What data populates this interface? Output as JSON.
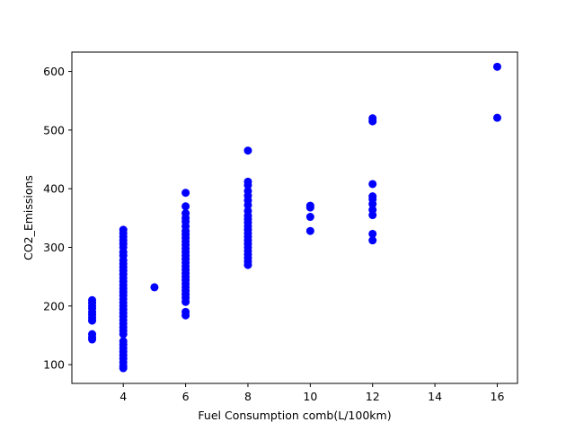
{
  "chart_data": {
    "type": "scatter",
    "title": "",
    "xlabel": "Fuel Consumption comb(L/100km)",
    "ylabel": "CO2_Emissions",
    "xlim": [
      2.35,
      16.65
    ],
    "ylim": [
      68,
      633
    ],
    "xticks": [
      4,
      6,
      8,
      10,
      12,
      14,
      16
    ],
    "yticks": [
      100,
      200,
      300,
      400,
      500,
      600
    ],
    "grid": false,
    "legend": "none",
    "marker_color": "#0000ff",
    "series": [
      {
        "color": "#0000ff",
        "points": [
          [
            3,
            143
          ],
          [
            3,
            147
          ],
          [
            3,
            152
          ],
          [
            3,
            175
          ],
          [
            3,
            180
          ],
          [
            3,
            185
          ],
          [
            3,
            190
          ],
          [
            3,
            196
          ],
          [
            3,
            200
          ],
          [
            3,
            205
          ],
          [
            3,
            210
          ],
          [
            4,
            94
          ],
          [
            4,
            98
          ],
          [
            4,
            104
          ],
          [
            4,
            110
          ],
          [
            4,
            116
          ],
          [
            4,
            122
          ],
          [
            4,
            128
          ],
          [
            4,
            134
          ],
          [
            4,
            140
          ],
          [
            4,
            152
          ],
          [
            4,
            158
          ],
          [
            4,
            164
          ],
          [
            4,
            170
          ],
          [
            4,
            176
          ],
          [
            4,
            182
          ],
          [
            4,
            188
          ],
          [
            4,
            194
          ],
          [
            4,
            200
          ],
          [
            4,
            206
          ],
          [
            4,
            212
          ],
          [
            4,
            218
          ],
          [
            4,
            224
          ],
          [
            4,
            230
          ],
          [
            4,
            236
          ],
          [
            4,
            242
          ],
          [
            4,
            248
          ],
          [
            4,
            254
          ],
          [
            4,
            260
          ],
          [
            4,
            266
          ],
          [
            4,
            272
          ],
          [
            4,
            278
          ],
          [
            4,
            286
          ],
          [
            4,
            292
          ],
          [
            4,
            300
          ],
          [
            4,
            306
          ],
          [
            4,
            312
          ],
          [
            4,
            318
          ],
          [
            4,
            324
          ],
          [
            4,
            330
          ],
          [
            5,
            232
          ],
          [
            6,
            184
          ],
          [
            6,
            190
          ],
          [
            6,
            207
          ],
          [
            6,
            214
          ],
          [
            6,
            220
          ],
          [
            6,
            226
          ],
          [
            6,
            232
          ],
          [
            6,
            238
          ],
          [
            6,
            244
          ],
          [
            6,
            250
          ],
          [
            6,
            256
          ],
          [
            6,
            262
          ],
          [
            6,
            268
          ],
          [
            6,
            274
          ],
          [
            6,
            280
          ],
          [
            6,
            286
          ],
          [
            6,
            292
          ],
          [
            6,
            298
          ],
          [
            6,
            304
          ],
          [
            6,
            310
          ],
          [
            6,
            316
          ],
          [
            6,
            322
          ],
          [
            6,
            328
          ],
          [
            6,
            336
          ],
          [
            6,
            344
          ],
          [
            6,
            350
          ],
          [
            6,
            358
          ],
          [
            6,
            370
          ],
          [
            6,
            393
          ],
          [
            8,
            270
          ],
          [
            8,
            276
          ],
          [
            8,
            282
          ],
          [
            8,
            288
          ],
          [
            8,
            294
          ],
          [
            8,
            300
          ],
          [
            8,
            306
          ],
          [
            8,
            312
          ],
          [
            8,
            318
          ],
          [
            8,
            324
          ],
          [
            8,
            330
          ],
          [
            8,
            336
          ],
          [
            8,
            342
          ],
          [
            8,
            348
          ],
          [
            8,
            354
          ],
          [
            8,
            362
          ],
          [
            8,
            372
          ],
          [
            8,
            380
          ],
          [
            8,
            388
          ],
          [
            8,
            396
          ],
          [
            8,
            406
          ],
          [
            8,
            412
          ],
          [
            8,
            465
          ],
          [
            10,
            328
          ],
          [
            10,
            352
          ],
          [
            10,
            368
          ],
          [
            10,
            371
          ],
          [
            12,
            312
          ],
          [
            12,
            323
          ],
          [
            12,
            355
          ],
          [
            12,
            364
          ],
          [
            12,
            374
          ],
          [
            12,
            382
          ],
          [
            12,
            387
          ],
          [
            12,
            408
          ],
          [
            12,
            515
          ],
          [
            12,
            520
          ],
          [
            16,
            521
          ],
          [
            16,
            608
          ]
        ]
      }
    ]
  }
}
